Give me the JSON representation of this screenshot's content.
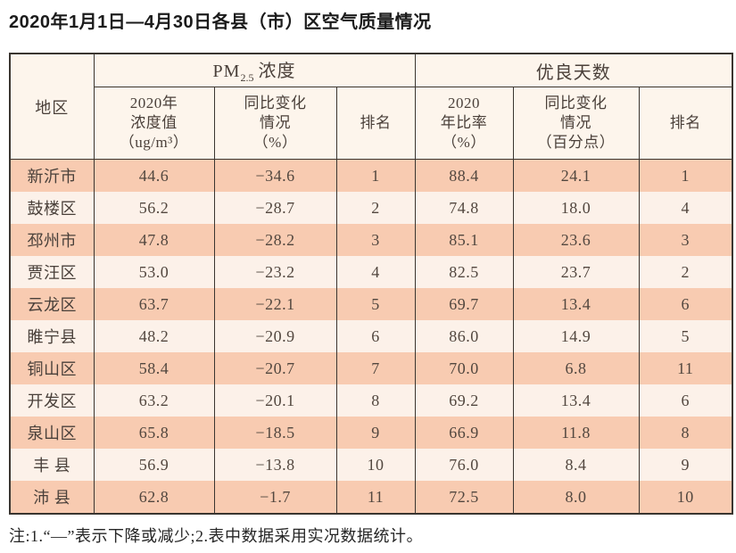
{
  "page": {
    "title": "2020年1月1日—4月30日各县（市）区空气质量情况"
  },
  "table": {
    "region_header": "地区",
    "group_headers": {
      "pm25": {
        "prefix": "PM",
        "sub": "2.5",
        "suffix": "浓度"
      },
      "good_days": "优良天数"
    },
    "sub_headers": [
      "2020年\n浓度值\n（ug/m³）",
      "同比变化\n情况\n（%）",
      "排名",
      "2020\n年比率\n（%）",
      "同比变化\n情况\n（百分点）",
      "排名"
    ],
    "rows": [
      {
        "region": "新沂市",
        "values": [
          "44.6",
          "−34.6",
          "1",
          "88.4",
          "24.1",
          "1"
        ]
      },
      {
        "region": "鼓楼区",
        "values": [
          "56.2",
          "−28.7",
          "2",
          "74.8",
          "18.0",
          "4"
        ]
      },
      {
        "region": "邳州市",
        "values": [
          "47.8",
          "−28.2",
          "3",
          "85.1",
          "23.6",
          "3"
        ]
      },
      {
        "region": "贾汪区",
        "values": [
          "53.0",
          "−23.2",
          "4",
          "82.5",
          "23.7",
          "2"
        ]
      },
      {
        "region": "云龙区",
        "values": [
          "63.7",
          "−22.1",
          "5",
          "69.7",
          "13.4",
          "6"
        ]
      },
      {
        "region": "睢宁县",
        "values": [
          "48.2",
          "−20.9",
          "6",
          "86.0",
          "14.9",
          "5"
        ]
      },
      {
        "region": "铜山区",
        "values": [
          "58.4",
          "−20.7",
          "7",
          "70.0",
          "6.8",
          "11"
        ]
      },
      {
        "region": "开发区",
        "values": [
          "63.2",
          "−20.1",
          "8",
          "69.2",
          "13.4",
          "6"
        ]
      },
      {
        "region": "泉山区",
        "values": [
          "65.8",
          "−18.5",
          "9",
          "66.9",
          "11.8",
          "8"
        ]
      },
      {
        "region": "丰 县",
        "values": [
          "56.9",
          "−13.8",
          "10",
          "76.0",
          "8.4",
          "9"
        ]
      },
      {
        "region": "沛 县",
        "values": [
          "62.8",
          "−1.7",
          "11",
          "72.5",
          "8.0",
          "10"
        ]
      }
    ]
  },
  "note": "注:1.“—”表示下降或减少;2.表中数据采用实况数据统计。",
  "colors": {
    "row_highlight": "#f8cbb1",
    "row_light": "#fcf1e9",
    "header_bg": "#fdf5ec",
    "border": "#3a3530",
    "text": "#52473f"
  }
}
